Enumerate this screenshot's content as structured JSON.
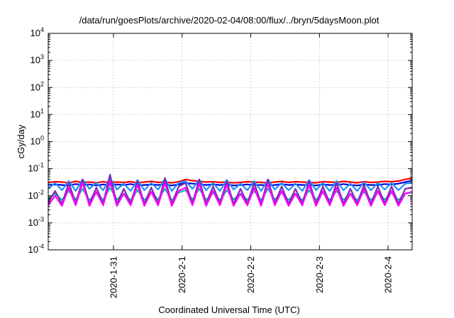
{
  "chart_data": {
    "type": "line",
    "title": "/data/run/goesPlots/archive/2020-02-04/08:00/flux/../bryn/5daysMoon.plot",
    "xlabel": "Coordinated Universal Time (UTC)",
    "ylabel": "cGy/day",
    "yscale": "log",
    "ylim": [
      0.0001,
      10000
    ],
    "xlim": [
      -0.95,
      4.35
    ],
    "grid": true,
    "x_ticks": [
      {
        "label": "2020-1-31",
        "value": 0
      },
      {
        "label": "2020-2-1",
        "value": 1
      },
      {
        "label": "2020-2-2",
        "value": 2
      },
      {
        "label": "2020-2-3",
        "value": 3
      },
      {
        "label": "2020-2-4",
        "value": 4
      }
    ],
    "y_ticks": [
      {
        "base": "10",
        "exp": "-4",
        "value": 0.0001
      },
      {
        "base": "10",
        "exp": "-3",
        "value": 0.001
      },
      {
        "base": "10",
        "exp": "-2",
        "value": 0.01
      },
      {
        "base": "10",
        "exp": "-1",
        "value": 0.1
      },
      {
        "base": "10",
        "exp": "0",
        "value": 1
      },
      {
        "base": "10",
        "exp": "1",
        "value": 10
      },
      {
        "base": "10",
        "exp": "2",
        "value": 100
      },
      {
        "base": "10",
        "exp": "3",
        "value": 1000
      },
      {
        "base": "10",
        "exp": "4",
        "value": 10000
      }
    ],
    "series": [
      {
        "color": "#ff0000",
        "x": [
          -0.95,
          -0.85,
          -0.75,
          -0.65,
          -0.55,
          -0.45,
          -0.35,
          -0.25,
          -0.15,
          -0.05,
          0.05,
          0.15,
          0.25,
          0.35,
          0.45,
          0.55,
          0.65,
          0.75,
          0.85,
          0.95,
          1.05,
          1.15,
          1.25,
          1.35,
          1.45,
          1.55,
          1.65,
          1.75,
          1.85,
          1.95,
          2.05,
          2.15,
          2.25,
          2.35,
          2.45,
          2.55,
          2.65,
          2.75,
          2.85,
          2.95,
          3.05,
          3.15,
          3.25,
          3.35,
          3.45,
          3.55,
          3.65,
          3.75,
          3.85,
          3.95,
          4.05,
          4.15,
          4.25,
          4.35
        ],
        "y": [
          0.031,
          0.033,
          0.032,
          0.03,
          0.034,
          0.031,
          0.032,
          0.03,
          0.033,
          0.031,
          0.032,
          0.031,
          0.033,
          0.03,
          0.032,
          0.034,
          0.031,
          0.032,
          0.03,
          0.033,
          0.04,
          0.036,
          0.034,
          0.032,
          0.033,
          0.031,
          0.032,
          0.03,
          0.031,
          0.033,
          0.032,
          0.031,
          0.03,
          0.032,
          0.034,
          0.031,
          0.033,
          0.032,
          0.031,
          0.03,
          0.033,
          0.032,
          0.031,
          0.034,
          0.032,
          0.03,
          0.033,
          0.031,
          0.032,
          0.034,
          0.033,
          0.035,
          0.04,
          0.045
        ]
      },
      {
        "color": "#0000dd",
        "x": [
          -0.95,
          -0.85,
          -0.75,
          -0.65,
          -0.55,
          -0.45,
          -0.35,
          -0.25,
          -0.15,
          -0.05,
          0.05,
          0.15,
          0.25,
          0.35,
          0.45,
          0.55,
          0.65,
          0.75,
          0.85,
          0.95,
          1.05,
          1.15,
          1.25,
          1.35,
          1.45,
          1.55,
          1.65,
          1.75,
          1.85,
          1.95,
          2.05,
          2.15,
          2.25,
          2.35,
          2.45,
          2.55,
          2.65,
          2.75,
          2.85,
          2.95,
          3.05,
          3.15,
          3.25,
          3.35,
          3.45,
          3.55,
          3.65,
          3.75,
          3.85,
          3.95,
          4.05,
          4.15,
          4.25,
          4.35
        ],
        "y": [
          0.025,
          0.026,
          0.025,
          0.024,
          0.027,
          0.025,
          0.026,
          0.024,
          0.026,
          0.025,
          0.026,
          0.025,
          0.027,
          0.024,
          0.025,
          0.026,
          0.025,
          0.026,
          0.024,
          0.026,
          0.03,
          0.028,
          0.027,
          0.025,
          0.026,
          0.025,
          0.026,
          0.024,
          0.025,
          0.026,
          0.025,
          0.025,
          0.024,
          0.025,
          0.027,
          0.025,
          0.026,
          0.025,
          0.025,
          0.024,
          0.026,
          0.025,
          0.025,
          0.027,
          0.025,
          0.024,
          0.026,
          0.025,
          0.025,
          0.027,
          0.026,
          0.028,
          0.032,
          0.036
        ]
      },
      {
        "color": "#1e90ff",
        "x": [
          -0.95,
          -0.85,
          -0.75,
          -0.65,
          -0.55,
          -0.45,
          -0.35,
          -0.25,
          -0.15,
          -0.05,
          0.05,
          0.15,
          0.25,
          0.35,
          0.45,
          0.55,
          0.65,
          0.75,
          0.85,
          0.95,
          1.05,
          1.15,
          1.25,
          1.35,
          1.45,
          1.55,
          1.65,
          1.75,
          1.85,
          1.95,
          2.05,
          2.15,
          2.25,
          2.35,
          2.45,
          2.55,
          2.65,
          2.75,
          2.85,
          2.95,
          3.05,
          3.15,
          3.25,
          3.35,
          3.45,
          3.55,
          3.65,
          3.75,
          3.85,
          3.95,
          4.05,
          4.15,
          4.25,
          4.35
        ],
        "y": [
          0.018,
          0.03,
          0.016,
          0.035,
          0.015,
          0.04,
          0.018,
          0.03,
          0.016,
          0.045,
          0.017,
          0.028,
          0.015,
          0.038,
          0.016,
          0.03,
          0.017,
          0.042,
          0.015,
          0.03,
          0.035,
          0.018,
          0.04,
          0.016,
          0.03,
          0.015,
          0.038,
          0.017,
          0.028,
          0.016,
          0.035,
          0.015,
          0.04,
          0.017,
          0.03,
          0.016,
          0.028,
          0.015,
          0.038,
          0.016,
          0.03,
          0.015,
          0.035,
          0.016,
          0.028,
          0.015,
          0.032,
          0.016,
          0.03,
          0.017,
          0.03,
          0.016,
          0.028,
          0.03
        ]
      },
      {
        "color": "#00c896",
        "x": [
          -0.95,
          -0.85,
          -0.75,
          -0.65,
          -0.55,
          -0.45,
          -0.35,
          -0.25,
          -0.15,
          -0.05,
          0.05,
          0.15,
          0.25,
          0.35,
          0.45,
          0.55,
          0.65,
          0.75,
          0.85,
          0.95,
          1.05,
          1.15,
          1.25,
          1.35,
          1.45,
          1.55,
          1.65,
          1.75,
          1.85,
          1.95,
          2.05,
          2.15,
          2.25,
          2.35,
          2.45,
          2.55,
          2.65,
          2.75,
          2.85,
          2.95,
          3.05,
          3.15,
          3.25,
          3.35,
          3.45,
          3.55,
          3.65,
          3.75,
          3.85,
          3.95,
          4.05,
          4.15,
          4.25,
          4.35
        ],
        "y": [
          0.0075,
          0.012,
          0.007,
          0.015,
          0.0072,
          0.018,
          0.0068,
          0.013,
          0.007,
          0.02,
          0.0072,
          0.012,
          0.0068,
          0.016,
          0.007,
          0.013,
          0.0072,
          0.018,
          0.0068,
          0.013,
          0.016,
          0.0072,
          0.018,
          0.007,
          0.013,
          0.0068,
          0.016,
          0.0072,
          0.012,
          0.007,
          0.015,
          0.0068,
          0.018,
          0.0072,
          0.013,
          0.007,
          0.012,
          0.0068,
          0.016,
          0.007,
          0.013,
          0.0068,
          0.015,
          0.007,
          0.012,
          0.0068,
          0.014,
          0.007,
          0.013,
          0.0072,
          0.013,
          0.007,
          0.012,
          0.013
        ]
      },
      {
        "color": "#7b2ab8",
        "x": [
          -0.95,
          -0.85,
          -0.75,
          -0.65,
          -0.55,
          -0.45,
          -0.35,
          -0.25,
          -0.15,
          -0.05,
          0.05,
          0.15,
          0.25,
          0.35,
          0.45,
          0.55,
          0.65,
          0.75,
          0.85,
          0.95,
          1.05,
          1.15,
          1.25,
          1.35,
          1.45,
          1.55,
          1.65,
          1.75,
          1.85,
          1.95,
          2.05,
          2.15,
          2.25,
          2.35,
          2.45,
          2.55,
          2.65,
          2.75,
          2.85,
          2.95,
          3.05,
          3.15,
          3.25,
          3.35,
          3.45,
          3.55,
          3.65,
          3.75,
          3.85,
          3.95,
          4.05,
          4.15,
          4.25,
          4.35
        ],
        "y": [
          0.0055,
          0.015,
          0.005,
          0.03,
          0.0052,
          0.04,
          0.005,
          0.02,
          0.0052,
          0.06,
          0.005,
          0.018,
          0.0052,
          0.035,
          0.005,
          0.02,
          0.0052,
          0.045,
          0.005,
          0.022,
          0.03,
          0.0052,
          0.04,
          0.005,
          0.022,
          0.0052,
          0.035,
          0.005,
          0.018,
          0.0052,
          0.03,
          0.005,
          0.04,
          0.0052,
          0.022,
          0.005,
          0.018,
          0.0052,
          0.035,
          0.005,
          0.022,
          0.0052,
          0.03,
          0.005,
          0.018,
          0.0052,
          0.025,
          0.005,
          0.022,
          0.0052,
          0.022,
          0.005,
          0.018,
          0.02
        ]
      },
      {
        "color": "#ff00ff",
        "x": [
          -0.95,
          -0.85,
          -0.75,
          -0.65,
          -0.55,
          -0.45,
          -0.35,
          -0.25,
          -0.15,
          -0.05,
          0.05,
          0.15,
          0.25,
          0.35,
          0.45,
          0.55,
          0.65,
          0.75,
          0.85,
          0.95,
          1.05,
          1.15,
          1.25,
          1.35,
          1.45,
          1.55,
          1.65,
          1.75,
          1.85,
          1.95,
          2.05,
          2.15,
          2.25,
          2.35,
          2.45,
          2.55,
          2.65,
          2.75,
          2.85,
          2.95,
          3.05,
          3.15,
          3.25,
          3.35,
          3.45,
          3.55,
          3.65,
          3.75,
          3.85,
          3.95,
          4.05,
          4.15,
          4.25,
          4.35
        ],
        "y": [
          0.0045,
          0.01,
          0.0042,
          0.02,
          0.0044,
          0.03,
          0.0042,
          0.014,
          0.0044,
          0.035,
          0.0042,
          0.012,
          0.0044,
          0.025,
          0.0042,
          0.014,
          0.0044,
          0.03,
          0.0042,
          0.015,
          0.02,
          0.0044,
          0.028,
          0.0042,
          0.015,
          0.0044,
          0.025,
          0.0042,
          0.012,
          0.0044,
          0.02,
          0.0042,
          0.028,
          0.0044,
          0.015,
          0.0042,
          0.012,
          0.0044,
          0.025,
          0.0042,
          0.015,
          0.0044,
          0.02,
          0.0042,
          0.012,
          0.0044,
          0.018,
          0.0042,
          0.015,
          0.0044,
          0.015,
          0.0042,
          0.012,
          0.014
        ]
      }
    ]
  }
}
